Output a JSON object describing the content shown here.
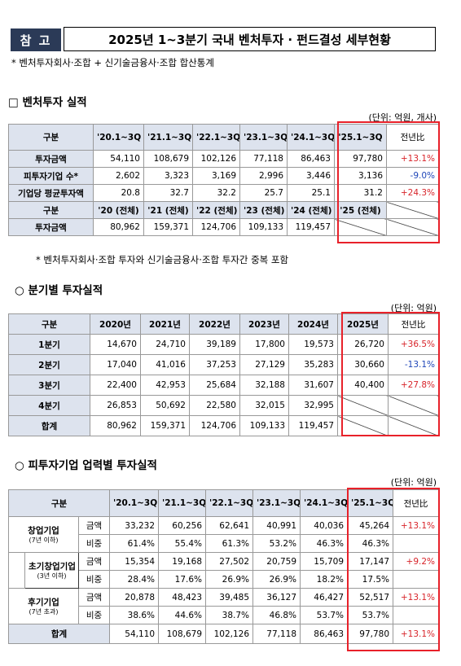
{
  "header": {
    "badge": "참 고",
    "title": "2025년 1~3분기 국내 벤처투자 · 펀드결성 세부현황"
  },
  "subnote": "* 벤처투자회사·조합 + 신기술금융사·조합 합산통계",
  "s1": {
    "title": "□ 벤처투자 실적",
    "unit": "(단위: 억원, 개사)",
    "head": [
      "구분",
      "'20.1~3Q",
      "'21.1~3Q",
      "'22.1~3Q",
      "'23.1~3Q",
      "'24.1~3Q",
      "'25.1~3Q",
      "전년比"
    ],
    "rows": [
      [
        "투자금액",
        "54,110",
        "108,679",
        "102,126",
        "77,118",
        "86,463",
        "97,780",
        "+13.1%"
      ],
      [
        "피투자기업 수*",
        "2,602",
        "3,323",
        "3,169",
        "2,996",
        "3,446",
        "3,136",
        "-9.0%"
      ],
      [
        "기업당 평균투자액",
        "20.8",
        "32.7",
        "32.2",
        "25.7",
        "25.1",
        "31.2",
        "+24.3%"
      ]
    ],
    "head2": [
      [
        "구분",
        ""
      ],
      [
        "'20",
        "(전체)"
      ],
      [
        "'21",
        "(전체)"
      ],
      [
        "'22",
        "(전체)"
      ],
      [
        "'23",
        "(전체)"
      ],
      [
        "'24",
        "(전체)"
      ],
      [
        "'25",
        "(전체)"
      ]
    ],
    "row2": [
      "투자금액",
      "80,962",
      "159,371",
      "124,706",
      "109,133",
      "119,457"
    ],
    "footnote": "* 벤처투자회사·조합 투자와 신기술금융사·조합 투자간 중복 포함"
  },
  "s2": {
    "title": "○ 분기별 투자실적",
    "unit": "(단위: 억원)",
    "head": [
      "구분",
      "2020년",
      "2021년",
      "2022년",
      "2023년",
      "2024년",
      "2025년",
      "전년比"
    ],
    "rows": [
      [
        "1분기",
        "14,670",
        "24,710",
        "39,189",
        "17,800",
        "19,573",
        "26,720",
        "+36.5%"
      ],
      [
        "2분기",
        "17,040",
        "41,016",
        "37,253",
        "27,129",
        "35,283",
        "30,660",
        "-13.1%"
      ],
      [
        "3분기",
        "22,400",
        "42,953",
        "25,684",
        "32,188",
        "31,607",
        "40,400",
        "+27.8%"
      ],
      [
        "4분기",
        "26,853",
        "50,692",
        "22,580",
        "32,015",
        "32,995",
        "",
        ""
      ],
      [
        "합계",
        "80,962",
        "159,371",
        "124,706",
        "109,133",
        "119,457",
        "",
        ""
      ]
    ]
  },
  "s3": {
    "title": "○ 피투자기업 업력별 투자실적",
    "unit": "(단위: 억원)",
    "head": [
      "구분",
      "'20.1~3Q",
      "'21.1~3Q",
      "'22.1~3Q",
      "'23.1~3Q",
      "'24.1~3Q",
      "'25.1~3Q",
      "전년比"
    ],
    "groups": [
      {
        "name": "창업기업",
        "sub": "(7년 이하)",
        "rows": [
          [
            "금액",
            "33,232",
            "60,256",
            "62,641",
            "40,991",
            "40,036",
            "45,264",
            "+13.1%"
          ],
          [
            "비중",
            "61.4%",
            "55.4%",
            "61.3%",
            "53.2%",
            "46.3%",
            "46.3%",
            ""
          ]
        ]
      },
      {
        "name": "초기창업기업",
        "sub": "(3년 이하)",
        "rows": [
          [
            "금액",
            "15,354",
            "19,168",
            "27,502",
            "20,759",
            "15,709",
            "17,147",
            "+9.2%"
          ],
          [
            "비중",
            "28.4%",
            "17.6%",
            "26.9%",
            "26.9%",
            "18.2%",
            "17.5%",
            ""
          ]
        ]
      },
      {
        "name": "후기기업",
        "sub": "(7년 초과)",
        "rows": [
          [
            "금액",
            "20,878",
            "48,423",
            "39,485",
            "36,127",
            "46,427",
            "52,517",
            "+13.1%"
          ],
          [
            "비중",
            "38.6%",
            "44.6%",
            "38.7%",
            "46.8%",
            "53.7%",
            "53.7%",
            ""
          ]
        ]
      }
    ],
    "total": [
      "합계",
      "54,110",
      "108,679",
      "102,126",
      "77,118",
      "86,463",
      "97,780",
      "+13.1%"
    ]
  }
}
